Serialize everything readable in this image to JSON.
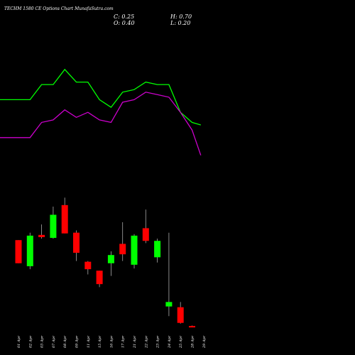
{
  "header": {
    "title": "TECHM 1580 CE Options Chart MunafaSutra.com",
    "close": "C: 0.25",
    "high": "H: 0.70",
    "open": "O: 0.40",
    "low": "L: 0.20"
  },
  "colors": {
    "background": "#000000",
    "up": "#00ff00",
    "down": "#ff0000",
    "upper_line": "#00ff00",
    "lower_line": "#cc00cc",
    "text": "#ffffff"
  },
  "chart_data": {
    "type": "candlestick",
    "title": "TECHM 1580 CE Options Chart MunafaSutra.com",
    "categories": [
      "01 Apr",
      "02 Apr",
      "03 Apr",
      "07 Apr",
      "08 Apr",
      "09 Apr",
      "11 Apr",
      "15 Apr",
      "16 Apr",
      "17 Apr",
      "21 Apr",
      "22 Apr",
      "23 Apr",
      "24 Apr",
      "25 Apr",
      "28 Apr",
      "29 Apr"
    ],
    "candles": [
      {
        "date": "01 Apr",
        "open": 58.0,
        "high": 58.0,
        "low": 42.5,
        "close": 42.5
      },
      {
        "date": "02 Apr",
        "open": 40.5,
        "high": 63.0,
        "low": 38.5,
        "close": 61.0
      },
      {
        "date": "03 Apr",
        "open": 61.5,
        "high": 68.5,
        "low": 59.0,
        "close": 60.0
      },
      {
        "date": "07 Apr",
        "open": 59.5,
        "high": 80.5,
        "low": 59.0,
        "close": 75.0
      },
      {
        "date": "08 Apr",
        "open": 81.5,
        "high": 86.5,
        "low": 62.5,
        "close": 62.5
      },
      {
        "date": "09 Apr",
        "open": 63.0,
        "high": 64.5,
        "low": 44.0,
        "close": 49.5
      },
      {
        "date": "11 Apr",
        "open": 43.5,
        "high": 44.0,
        "low": 35.0,
        "close": 38.5
      },
      {
        "date": "15 Apr",
        "open": 37.5,
        "high": 37.5,
        "low": 26.5,
        "close": 28.5
      },
      {
        "date": "16 Apr",
        "open": 42.5,
        "high": 50.5,
        "low": 34.0,
        "close": 48.0
      },
      {
        "date": "17 Apr",
        "open": 55.5,
        "high": 70.0,
        "low": 44.0,
        "close": 48.5
      },
      {
        "date": "21 Apr",
        "open": 41.5,
        "high": 62.0,
        "low": 39.0,
        "close": 61.0
      },
      {
        "date": "22 Apr",
        "open": 66.0,
        "high": 78.5,
        "low": 56.0,
        "close": 57.5
      },
      {
        "date": "23 Apr",
        "open": 46.5,
        "high": 59.0,
        "low": 43.0,
        "close": 57.5
      },
      {
        "date": "24 Apr",
        "open": 13.5,
        "high": 63.0,
        "low": 7.0,
        "close": 16.5
      },
      {
        "date": "25 Apr",
        "open": 13.0,
        "high": 16.5,
        "low": 2.0,
        "close": 2.5
      },
      {
        "date": "28 Apr",
        "open": 0.4,
        "high": 0.7,
        "low": 0.2,
        "close": 0.25
      },
      {
        "date": "29 Apr",
        "open": null,
        "high": null,
        "low": null,
        "close": null
      }
    ],
    "overlay_series": [
      {
        "color": "#00ff00",
        "values": [
          58,
          58,
          64,
          64,
          70,
          65,
          65,
          58,
          55,
          61,
          62,
          65,
          64,
          64,
          53,
          49,
          48
        ]
      },
      {
        "color": "#cc00cc",
        "values": [
          43,
          43,
          49,
          50,
          54,
          51,
          53,
          50,
          49,
          57,
          58,
          61,
          60,
          59,
          53,
          46,
          36
        ]
      }
    ],
    "ylim": [
      0,
      100
    ],
    "grid": false,
    "legend": "none"
  }
}
